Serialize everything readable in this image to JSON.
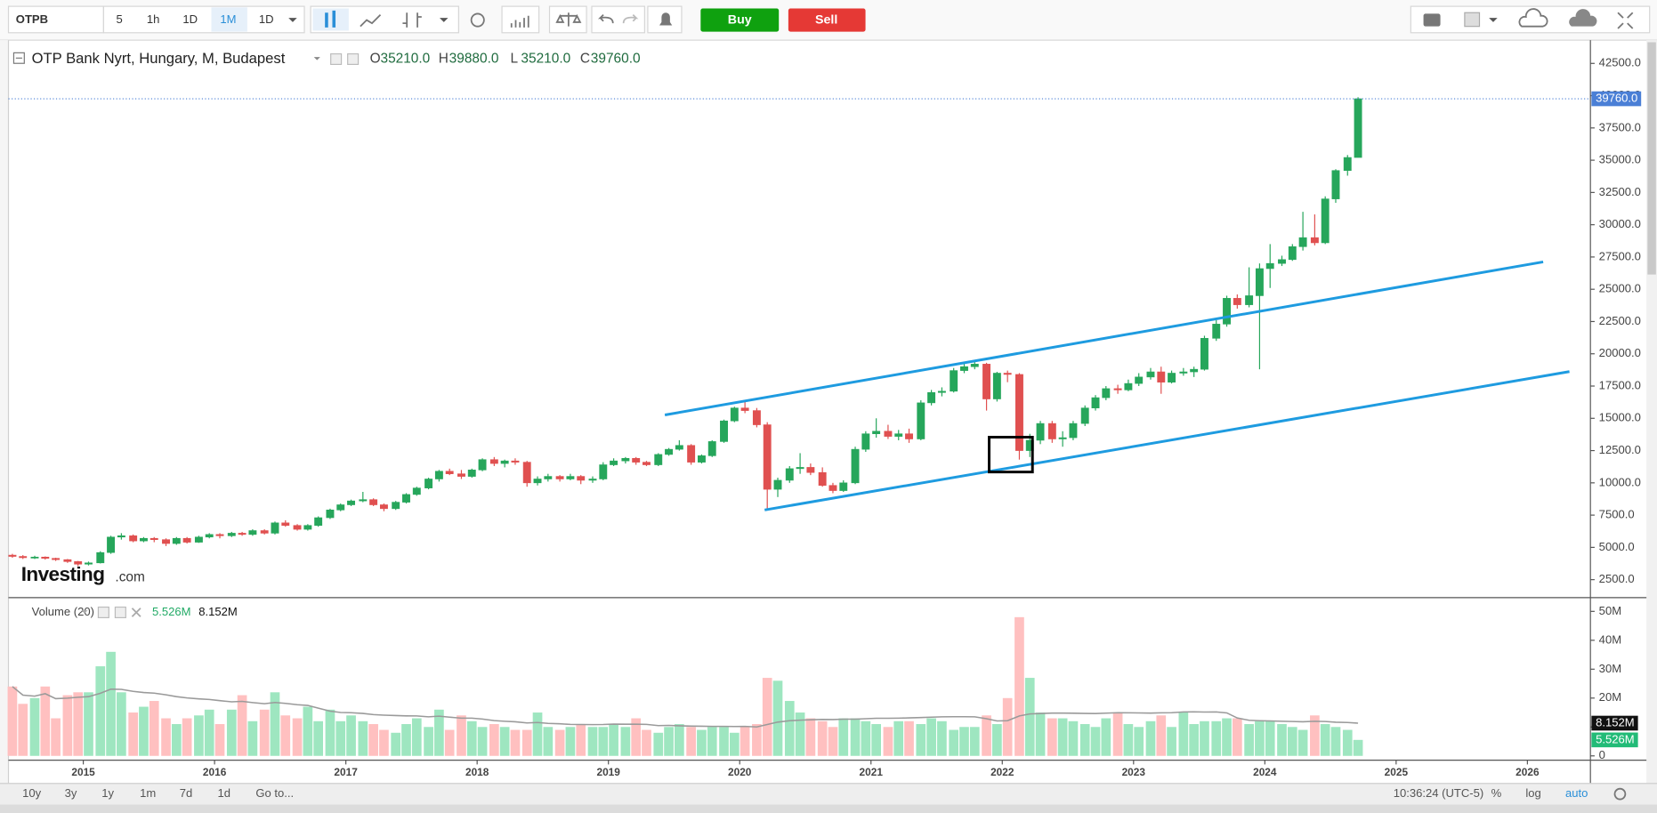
{
  "toolbar": {
    "symbol": "OTPB",
    "intervals": [
      "5",
      "1h",
      "1D",
      "1M",
      "1D"
    ],
    "buy": "Buy",
    "sell": "Sell"
  },
  "bottom_bar": {
    "ranges": [
      "10y",
      "3y",
      "1y",
      "1m",
      "7d",
      "1d"
    ],
    "goto": "Go to...",
    "time": "10:36:24 (UTC-5)",
    "options": [
      "%",
      "log",
      "auto"
    ]
  },
  "watermark": {
    "brand": "Investing",
    "suffix": ".com"
  },
  "chart_data": {
    "type": "candlestick",
    "title": "OTP Bank Nyrt, Hungary, M, Budapest",
    "ohlc_legend": [
      {
        "key": "O",
        "value": "35210.0"
      },
      {
        "key": "H",
        "value": "39880.0"
      },
      {
        "key": "L",
        "value": "35210.0"
      },
      {
        "key": "C",
        "value": "39760.0"
      }
    ],
    "last_price_label": "39760.0",
    "up_color": "#26a65b",
    "down_color": "#e05050",
    "volume_up_color": "#9ee6c0",
    "volume_down_color": "#ffc0c0",
    "volume_ma_color": "#9a9a9a",
    "volume_ma_period": 20,
    "volume_legend": {
      "title": "Volume (20)",
      "last": "5.526M",
      "ma": "8.152M"
    },
    "xlim": [
      2014.43,
      2026.48
    ],
    "xticks": [
      2015,
      2016,
      2017,
      2018,
      2019,
      2020,
      2021,
      2022,
      2023,
      2024,
      2025,
      2026
    ],
    "ylim": [
      1190,
      44140
    ],
    "yticks": [
      {
        "value": 2500,
        "label": "2500.0"
      },
      {
        "value": 5000,
        "label": "5000.0"
      },
      {
        "value": 7500,
        "label": "7500.0"
      },
      {
        "value": 10000,
        "label": "10000.0"
      },
      {
        "value": 12500,
        "label": "12500.0"
      },
      {
        "value": 15000,
        "label": "15000.0"
      },
      {
        "value": 17500,
        "label": "17500.0"
      },
      {
        "value": 20000,
        "label": "20000.0"
      },
      {
        "value": 22500,
        "label": "22500.0"
      },
      {
        "value": 25000,
        "label": "25000.0"
      },
      {
        "value": 27500,
        "label": "27500.0"
      },
      {
        "value": 30000,
        "label": "30000.0"
      },
      {
        "value": 32500,
        "label": "32500.0"
      },
      {
        "value": 35000,
        "label": "35000.0"
      },
      {
        "value": 37500,
        "label": "37500.0"
      },
      {
        "value": 40000,
        "label": "40000.0"
      },
      {
        "value": 42500,
        "label": "42500.0"
      }
    ],
    "volume_ylim": [
      -1.5,
      54.4
    ],
    "volume_yticks": [
      0,
      {
        "value": 10,
        "label": "10M"
      },
      {
        "value": 20,
        "label": "20M"
      },
      {
        "value": 30,
        "label": "30M"
      },
      {
        "value": 40,
        "label": "40M"
      },
      {
        "value": 50,
        "label": "50M"
      }
    ],
    "x": [
      2014.46,
      2014.54,
      2014.63,
      2014.71,
      2014.79,
      2014.88,
      2014.96,
      2015.04,
      2015.13,
      2015.21,
      2015.29,
      2015.38,
      2015.46,
      2015.54,
      2015.63,
      2015.71,
      2015.79,
      2015.88,
      2015.96,
      2016.04,
      2016.13,
      2016.21,
      2016.29,
      2016.38,
      2016.46,
      2016.54,
      2016.63,
      2016.71,
      2016.79,
      2016.88,
      2016.96,
      2017.04,
      2017.13,
      2017.21,
      2017.29,
      2017.38,
      2017.46,
      2017.54,
      2017.63,
      2017.71,
      2017.79,
      2017.88,
      2017.96,
      2018.04,
      2018.13,
      2018.21,
      2018.29,
      2018.38,
      2018.46,
      2018.54,
      2018.63,
      2018.71,
      2018.79,
      2018.88,
      2018.96,
      2019.04,
      2019.13,
      2019.21,
      2019.29,
      2019.38,
      2019.46,
      2019.54,
      2019.63,
      2019.71,
      2019.79,
      2019.88,
      2019.96,
      2020.04,
      2020.13,
      2020.21,
      2020.29,
      2020.38,
      2020.46,
      2020.54,
      2020.63,
      2020.71,
      2020.79,
      2020.88,
      2020.96,
      2021.04,
      2021.13,
      2021.21,
      2021.29,
      2021.38,
      2021.46,
      2021.54,
      2021.63,
      2021.71,
      2021.79,
      2021.88,
      2021.96,
      2022.04,
      2022.13,
      2022.21,
      2022.29,
      2022.38,
      2022.46,
      2022.54,
      2022.63,
      2022.71,
      2022.79,
      2022.88,
      2022.96,
      2023.04,
      2023.13,
      2023.21,
      2023.29,
      2023.38,
      2023.46,
      2023.54,
      2023.63,
      2023.71,
      2023.79,
      2023.88,
      2023.96,
      2024.04,
      2024.13,
      2024.21,
      2024.29,
      2024.38,
      2024.46,
      2024.54,
      2024.63,
      2024.71
    ],
    "ohlc": [
      [
        4400,
        4500,
        4200,
        4300
      ],
      [
        4300,
        4400,
        4100,
        4200
      ],
      [
        4200,
        4350,
        4100,
        4250
      ],
      [
        4250,
        4300,
        4050,
        4150
      ],
      [
        4150,
        4200,
        3950,
        4050
      ],
      [
        4050,
        4100,
        3800,
        3900
      ],
      [
        3900,
        3950,
        3550,
        3700
      ],
      [
        3700,
        3900,
        3600,
        3800
      ],
      [
        3800,
        4700,
        3750,
        4600
      ],
      [
        4600,
        5900,
        4500,
        5800
      ],
      [
        5800,
        6100,
        5600,
        5900
      ],
      [
        5900,
        6000,
        5400,
        5500
      ],
      [
        5500,
        5800,
        5400,
        5700
      ],
      [
        5700,
        5800,
        5400,
        5600
      ],
      [
        5600,
        5700,
        5100,
        5300
      ],
      [
        5300,
        5800,
        5200,
        5700
      ],
      [
        5700,
        5800,
        5300,
        5400
      ],
      [
        5400,
        5900,
        5350,
        5800
      ],
      [
        5800,
        6100,
        5700,
        6000
      ],
      [
        6000,
        6100,
        5700,
        5900
      ],
      [
        5900,
        6200,
        5800,
        6100
      ],
      [
        6100,
        6200,
        5900,
        6000
      ],
      [
        6000,
        6400,
        5900,
        6300
      ],
      [
        6300,
        6400,
        6000,
        6100
      ],
      [
        6100,
        7000,
        6000,
        6900
      ],
      [
        6900,
        7100,
        6600,
        6700
      ],
      [
        6700,
        6800,
        6300,
        6400
      ],
      [
        6400,
        6800,
        6300,
        6700
      ],
      [
        6700,
        7400,
        6600,
        7300
      ],
      [
        7300,
        8000,
        7200,
        7900
      ],
      [
        7900,
        8400,
        7800,
        8300
      ],
      [
        8300,
        8700,
        8200,
        8600
      ],
      [
        8600,
        9300,
        8500,
        8700
      ],
      [
        8700,
        8800,
        8200,
        8300
      ],
      [
        8300,
        8400,
        7800,
        8000
      ],
      [
        8000,
        8600,
        7900,
        8500
      ],
      [
        8500,
        9200,
        8400,
        9100
      ],
      [
        9100,
        9700,
        9000,
        9600
      ],
      [
        9600,
        10400,
        9500,
        10300
      ],
      [
        10300,
        11000,
        10100,
        10900
      ],
      [
        10900,
        11100,
        10600,
        10700
      ],
      [
        10700,
        11000,
        10300,
        10500
      ],
      [
        10500,
        11100,
        10400,
        11000
      ],
      [
        11000,
        11900,
        10900,
        11800
      ],
      [
        11800,
        12000,
        11300,
        11500
      ],
      [
        11500,
        11800,
        11200,
        11700
      ],
      [
        11700,
        11900,
        11400,
        11600
      ],
      [
        11600,
        11700,
        9700,
        10000
      ],
      [
        10000,
        10500,
        9800,
        10300
      ],
      [
        10300,
        10700,
        10100,
        10500
      ],
      [
        10500,
        10600,
        10100,
        10300
      ],
      [
        10300,
        10700,
        10200,
        10500
      ],
      [
        10500,
        10600,
        9900,
        10200
      ],
      [
        10200,
        10500,
        10000,
        10300
      ],
      [
        10300,
        11600,
        10200,
        11400
      ],
      [
        11400,
        11900,
        11300,
        11700
      ],
      [
        11700,
        12000,
        11500,
        11900
      ],
      [
        11900,
        12000,
        11400,
        11600
      ],
      [
        11600,
        11700,
        11300,
        11400
      ],
      [
        11400,
        12300,
        11300,
        12200
      ],
      [
        12200,
        12700,
        12100,
        12600
      ],
      [
        12600,
        13300,
        12500,
        12900
      ],
      [
        12900,
        13000,
        11400,
        11600
      ],
      [
        11600,
        12200,
        11500,
        12100
      ],
      [
        12100,
        13300,
        12000,
        13200
      ],
      [
        13200,
        14900,
        13100,
        14800
      ],
      [
        14800,
        15900,
        14700,
        15800
      ],
      [
        15800,
        16300,
        15400,
        15600
      ],
      [
        15600,
        15800,
        14300,
        14500
      ],
      [
        14500,
        14700,
        8000,
        9500
      ],
      [
        9500,
        10400,
        8900,
        10200
      ],
      [
        10200,
        11300,
        10000,
        11100
      ],
      [
        11100,
        12300,
        10700,
        11200
      ],
      [
        11200,
        11500,
        10600,
        10800
      ],
      [
        10800,
        11200,
        9700,
        9800
      ],
      [
        9800,
        10000,
        9200,
        9400
      ],
      [
        9400,
        10200,
        9300,
        10000
      ],
      [
        10000,
        12800,
        9900,
        12600
      ],
      [
        12600,
        14000,
        12400,
        13800
      ],
      [
        13800,
        15000,
        13500,
        14000
      ],
      [
        14000,
        14500,
        13400,
        13600
      ],
      [
        13600,
        14100,
        13300,
        13800
      ],
      [
        13800,
        14200,
        13100,
        13400
      ],
      [
        13400,
        16400,
        13300,
        16200
      ],
      [
        16200,
        17200,
        16000,
        17000
      ],
      [
        17000,
        17400,
        16700,
        17100
      ],
      [
        17100,
        18900,
        17000,
        18700
      ],
      [
        18700,
        19300,
        18500,
        19000
      ],
      [
        19000,
        19500,
        18800,
        19200
      ],
      [
        19200,
        19300,
        15600,
        16500
      ],
      [
        16500,
        18600,
        16300,
        18500
      ],
      [
        18500,
        18700,
        17800,
        18400
      ],
      [
        18400,
        18500,
        11800,
        12500
      ],
      [
        12500,
        13800,
        12000,
        13300
      ],
      [
        13300,
        14800,
        13000,
        14600
      ],
      [
        14600,
        14800,
        13100,
        13400
      ],
      [
        13400,
        14000,
        12800,
        13500
      ],
      [
        13500,
        14800,
        13300,
        14600
      ],
      [
        14600,
        16000,
        14400,
        15800
      ],
      [
        15800,
        16800,
        15600,
        16600
      ],
      [
        16600,
        17500,
        16400,
        17300
      ],
      [
        17300,
        17600,
        16900,
        17200
      ],
      [
        17200,
        18000,
        17100,
        17700
      ],
      [
        17700,
        18500,
        17500,
        18200
      ],
      [
        18200,
        18900,
        18000,
        18600
      ],
      [
        18600,
        19000,
        16900,
        17800
      ],
      [
        17800,
        18700,
        17700,
        18500
      ],
      [
        18500,
        18900,
        18300,
        18600
      ],
      [
        18600,
        19000,
        18200,
        18800
      ],
      [
        18800,
        21400,
        18700,
        21200
      ],
      [
        21200,
        22600,
        21000,
        22300
      ],
      [
        22300,
        24500,
        22100,
        24300
      ],
      [
        24300,
        24600,
        23500,
        23800
      ],
      [
        23800,
        26700,
        23600,
        24500
      ],
      [
        24500,
        27000,
        18800,
        26600
      ],
      [
        26600,
        28500,
        25100,
        27000
      ],
      [
        27000,
        27600,
        26800,
        27300
      ],
      [
        27300,
        28500,
        27200,
        28300
      ],
      [
        28300,
        31000,
        28000,
        29000
      ],
      [
        29000,
        30800,
        28400,
        28600
      ],
      [
        28600,
        32200,
        28500,
        32000
      ],
      [
        32000,
        34300,
        31700,
        34200
      ],
      [
        34200,
        35400,
        33800,
        35210
      ],
      [
        35210,
        39880,
        35210,
        39760
      ]
    ],
    "volume": [
      24,
      18,
      20,
      24,
      13,
      21,
      22,
      22,
      31,
      36,
      22,
      15,
      17,
      19,
      13,
      11,
      13,
      14,
      16,
      11,
      16,
      21,
      12,
      16,
      22,
      14,
      13,
      17,
      12,
      16,
      12,
      14,
      12,
      11,
      9,
      8,
      11,
      13,
      10,
      16,
      9,
      14,
      12,
      10,
      11,
      10,
      9,
      9,
      15,
      10,
      9,
      10,
      11,
      10,
      10,
      11,
      10,
      13,
      9,
      8,
      10,
      11,
      10,
      9,
      10,
      10,
      8,
      10,
      11,
      27,
      26,
      19,
      15,
      13,
      12,
      10,
      13,
      13,
      12,
      11,
      10,
      12,
      12,
      11,
      13,
      12,
      9,
      10,
      10,
      14,
      11,
      20,
      48,
      27,
      15,
      13,
      13,
      12,
      11,
      10,
      13,
      15,
      11,
      10,
      12,
      14,
      10,
      15,
      11,
      12,
      12,
      13,
      13,
      11,
      12,
      12,
      11,
      10,
      9,
      14,
      11,
      10,
      9,
      5.526
    ],
    "channel_color": "#1e9be0",
    "channel": [
      {
        "x": [
          2019.43,
          2026.12
        ],
        "y": [
          15260,
          27120
        ]
      },
      {
        "x": [
          2020.19,
          2026.32
        ],
        "y": [
          7900,
          18620
        ]
      }
    ],
    "box": {
      "x": [
        2021.9,
        2022.23
      ],
      "y": [
        13540,
        10840
      ]
    }
  }
}
